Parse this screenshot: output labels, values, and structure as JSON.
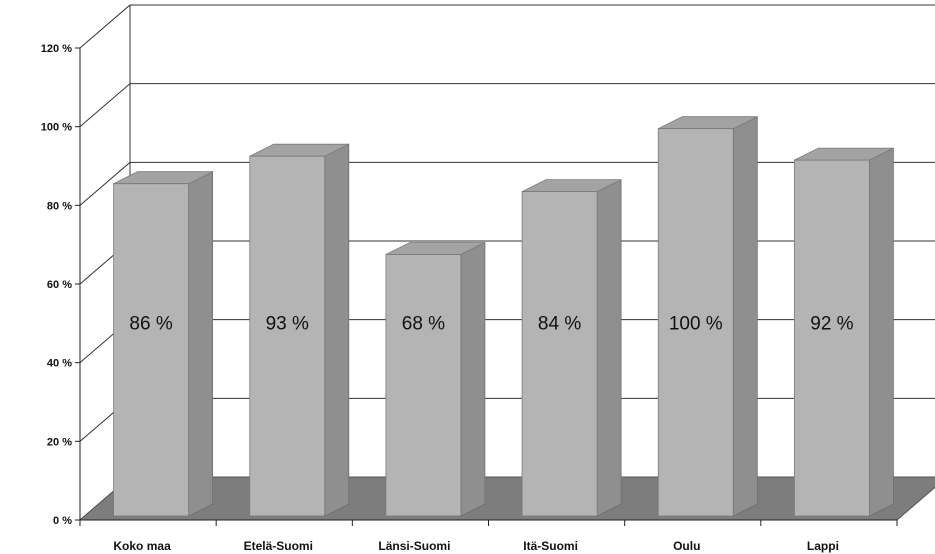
{
  "chart_data": {
    "type": "bar",
    "title": "",
    "xlabel": "",
    "ylabel": "",
    "categories": [
      "Koko maa",
      "Etelä-Suomi",
      "Länsi-Suomi",
      "Itä-Suomi",
      "Oulu",
      "Lappi"
    ],
    "values": [
      86,
      93,
      68,
      84,
      100,
      92
    ],
    "data_labels": [
      "86 %",
      "93 %",
      "68 %",
      "84 %",
      "100 %",
      "92 %"
    ],
    "ylim": [
      0,
      120
    ],
    "yticks": [
      0,
      20,
      40,
      60,
      80,
      100,
      120
    ],
    "ytick_labels": [
      "0 %",
      "20 %",
      "40 %",
      "60 %",
      "80 %",
      "100 %",
      "120 %"
    ],
    "grid": true,
    "legend": "none",
    "style": "3d-columns",
    "colors": {
      "bar_front": "#b4b4b4",
      "bar_side": "#8f8f8f",
      "bar_top": "#a3a3a3",
      "floor": "#7d7d7d",
      "grid": "#333333"
    }
  }
}
